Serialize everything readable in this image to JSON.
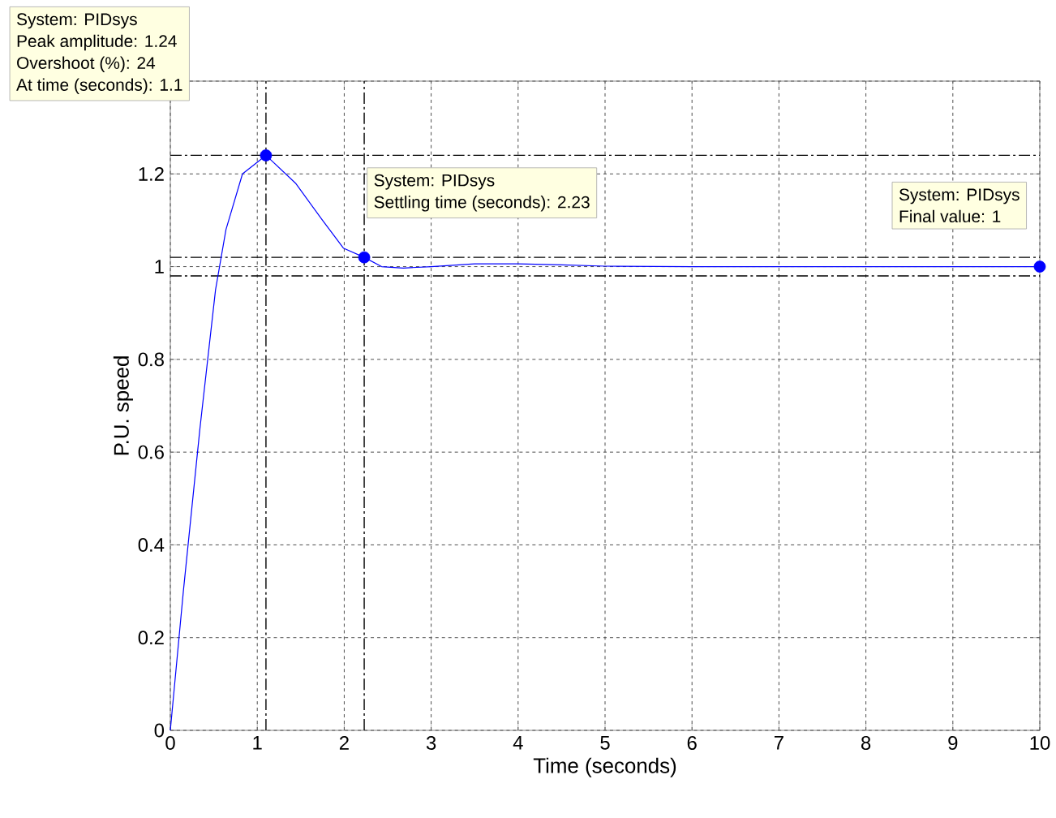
{
  "chart_data": {
    "type": "line",
    "xlabel": "Time (seconds)",
    "ylabel": "P.U. speed",
    "xlim": [
      0,
      10
    ],
    "ylim": [
      0,
      1.4
    ],
    "xticks": [
      0,
      1,
      2,
      3,
      4,
      5,
      6,
      7,
      8,
      9,
      10
    ],
    "yticks": [
      0,
      0.2,
      0.4,
      0.6,
      0.8,
      1,
      1.2,
      {
        "value": 1.4,
        "label": null
      }
    ],
    "grid": true,
    "line_style": "solid",
    "marker": "none",
    "series": [
      {
        "color": "#0000ff",
        "x": [
          0,
          0.15,
          0.34,
          0.52,
          0.64,
          0.83,
          1.1,
          1.44,
          1.75,
          1.99,
          2.23,
          2.43,
          2.68,
          3.0,
          3.5,
          4.0,
          4.5,
          5.0,
          6.0,
          7.0,
          8.0,
          9.0,
          10.0
        ],
        "values": [
          0,
          0.3,
          0.65,
          0.95,
          1.08,
          1.2,
          1.24,
          1.18,
          1.1,
          1.04,
          1.02,
          1.0,
          0.997,
          1.0,
          1.006,
          1.006,
          1.004,
          1.001,
          1.0,
          1.0,
          1.0,
          1.0,
          1.0
        ]
      },
      {
        "type": "scatter",
        "marker": "circle",
        "color": "#0000ff",
        "x": [
          1.1,
          2.23,
          10
        ],
        "values": [
          1.24,
          1.02,
          1
        ]
      }
    ],
    "ref_lines": [
      {
        "axis": "y",
        "value": 1.24,
        "color": "#000000",
        "line_style": "dashed"
      },
      {
        "axis": "x",
        "value": 1.1,
        "color": "#000000",
        "line_style": "dashed"
      },
      {
        "axis": "x",
        "value": 2.23,
        "color": "#000000",
        "line_style": "dashed"
      },
      {
        "axis": "y",
        "value": 1.02,
        "color": "#000000",
        "line_style": "dashed"
      },
      {
        "axis": "y",
        "value": 0.98,
        "color": "#000000",
        "line_style": "dashed"
      }
    ],
    "annotations": [
      "System: PIDsys",
      "Peak amplitude: 1.24",
      "Overshoot (%): 24",
      "At time (seconds): 1.1",
      "System: PIDsys",
      "Settling time (seconds): 2.23",
      "System: PIDsys",
      "Final value: 1"
    ]
  }
}
